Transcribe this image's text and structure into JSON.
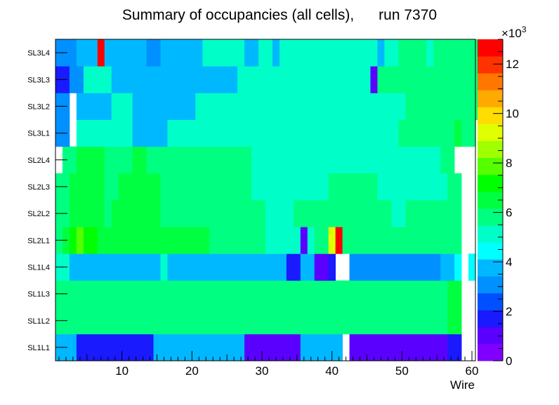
{
  "chart_data": {
    "type": "heatmap",
    "title": "Summary of occupancies (all cells),      run 7370",
    "xlabel": "Wire",
    "ylabel": "",
    "xlim": [
      0.5,
      60.5
    ],
    "x_ticks": [
      10,
      20,
      30,
      40,
      50,
      60
    ],
    "layers": [
      "SL1L1",
      "SL1L2",
      "SL1L3",
      "SL1L4",
      "SL2L1",
      "SL2L2",
      "SL2L3",
      "SL2L4",
      "SL3L1",
      "SL3L2",
      "SL3L3",
      "SL3L4"
    ],
    "zlim": [
      0,
      13000
    ],
    "z_ticks": [
      0,
      2,
      4,
      6,
      8,
      10,
      12
    ],
    "z_multiplier": "×10",
    "z_exponent": "3",
    "z_unit_divisor": 1000,
    "palette": [
      "#8000ff",
      "#5a00ff",
      "#1a1aff",
      "#0050ff",
      "#0090ff",
      "#00b8ff",
      "#00ffff",
      "#00ffc8",
      "#00ff80",
      "#00ff40",
      "#00ff00",
      "#55ff00",
      "#a0ff00",
      "#e0ff00",
      "#ffdd00",
      "#ffaa00",
      "#ff7700",
      "#ff3300",
      "#ff0000"
    ],
    "rows": [
      [
        3600,
        3600,
        3600,
        1600,
        1600,
        1600,
        1600,
        1600,
        1600,
        1600,
        1600,
        1600,
        1600,
        1600,
        4000,
        4000,
        4000,
        4000,
        4000,
        4000,
        4000,
        4000,
        4000,
        4000,
        4000,
        4000,
        4000,
        1000,
        1000,
        1000,
        1000,
        1000,
        1000,
        1000,
        1000,
        4000,
        4000,
        4000,
        4000,
        4000,
        4000,
        null,
        1000,
        1000,
        1000,
        1000,
        1000,
        1000,
        1000,
        1000,
        1000,
        1000,
        1000,
        1000,
        1000,
        1000,
        2000,
        2000,
        null,
        null,
        null
      ],
      [
        6000,
        6000,
        6000,
        6000,
        6000,
        6000,
        6000,
        6000,
        6000,
        6000,
        6000,
        5700,
        5500,
        5500,
        5500,
        5500,
        5500,
        5500,
        6000,
        6000,
        6000,
        6000,
        6000,
        6000,
        6000,
        6000,
        6000,
        6000,
        6000,
        6000,
        6000,
        6000,
        6000,
        6000,
        6000,
        6000,
        6000,
        6000,
        6000,
        6000,
        6000,
        6000,
        6000,
        6000,
        6000,
        6000,
        6000,
        6000,
        6000,
        6000,
        6000,
        6000,
        6000,
        6000,
        6000,
        6000,
        6500,
        6500,
        null,
        null,
        null
      ],
      [
        6000,
        6000,
        6000,
        6000,
        6000,
        6000,
        6000,
        6000,
        6000,
        6000,
        6000,
        5700,
        5700,
        5500,
        5500,
        5500,
        5500,
        5500,
        6000,
        6000,
        6000,
        6000,
        6000,
        6000,
        6000,
        6000,
        6000,
        6000,
        6000,
        6000,
        6000,
        6000,
        6000,
        6000,
        6000,
        6000,
        6000,
        6000,
        6000,
        6000,
        6000,
        6000,
        6000,
        6000,
        6000,
        6000,
        6000,
        6000,
        6000,
        6000,
        6000,
        6000,
        6000,
        6000,
        6000,
        6000,
        6500,
        6500,
        null,
        null,
        null
      ],
      [
        5000,
        5000,
        4000,
        4000,
        4000,
        4000,
        4000,
        4000,
        4000,
        4000,
        4000,
        4000,
        4000,
        4000,
        4000,
        5000,
        4000,
        4000,
        4000,
        4000,
        4000,
        4000,
        4000,
        4000,
        3500,
        3500,
        3500,
        3500,
        3500,
        3500,
        3500,
        3500,
        3500,
        2000,
        2000,
        3500,
        3500,
        1000,
        1000,
        2000,
        null,
        null,
        3000,
        3000,
        3000,
        3000,
        3000,
        3000,
        3000,
        3000,
        3000,
        3000,
        3000,
        3000,
        3000,
        3500,
        3500,
        4500,
        null,
        4500,
        null
      ],
      [
        6000,
        6500,
        7000,
        8000,
        7000,
        7000,
        6500,
        6500,
        6500,
        6500,
        6500,
        6500,
        6500,
        6500,
        6500,
        6500,
        6500,
        6500,
        6500,
        6500,
        6500,
        6500,
        6000,
        6000,
        6000,
        6000,
        6000,
        6000,
        6000,
        6000,
        5000,
        5000,
        5000,
        5000,
        5000,
        1000,
        5000,
        6000,
        6000,
        9000,
        13000,
        6000,
        6000,
        6000,
        5500,
        5500,
        5500,
        5500,
        5500,
        5500,
        5500,
        5500,
        5500,
        5500,
        5500,
        5500,
        5500,
        5500,
        null,
        null,
        null
      ],
      [
        6000,
        6000,
        6500,
        6500,
        6500,
        6500,
        6500,
        6000,
        6500,
        6500,
        6500,
        6500,
        6500,
        6500,
        6500,
        6000,
        6000,
        6000,
        6000,
        6000,
        5500,
        5500,
        5500,
        5500,
        5500,
        5500,
        5500,
        5500,
        5500,
        5500,
        5000,
        5000,
        5000,
        5000,
        5500,
        5500,
        5500,
        5500,
        5500,
        5500,
        5500,
        5500,
        5500,
        5500,
        5500,
        5500,
        5500,
        5500,
        5000,
        5000,
        5500,
        5500,
        5500,
        5500,
        5500,
        5500,
        5500,
        5500,
        null,
        null,
        null
      ],
      [
        6000,
        6000,
        6500,
        6500,
        6500,
        6500,
        6500,
        6000,
        6000,
        6500,
        6500,
        6500,
        6500,
        6500,
        6500,
        6000,
        6000,
        6000,
        6000,
        6000,
        5500,
        5500,
        5500,
        5500,
        5500,
        5500,
        5500,
        5500,
        5000,
        5000,
        5000,
        5000,
        5000,
        5000,
        5000,
        5000,
        5000,
        5000,
        5000,
        5500,
        5500,
        5500,
        5500,
        5500,
        5500,
        5500,
        5000,
        5000,
        5000,
        5000,
        5000,
        5000,
        5000,
        5000,
        5000,
        5000,
        5500,
        5500,
        null,
        null,
        null
      ],
      [
        null,
        6000,
        6000,
        6500,
        6500,
        6500,
        6500,
        6000,
        6000,
        6000,
        6000,
        6500,
        6500,
        6000,
        6000,
        6000,
        6000,
        6000,
        6000,
        6000,
        6000,
        5500,
        5500,
        5500,
        5500,
        5500,
        5500,
        5500,
        5000,
        5000,
        5000,
        5000,
        5000,
        5000,
        5000,
        5000,
        5000,
        5000,
        5000,
        5000,
        5000,
        5000,
        5000,
        5000,
        5000,
        5000,
        5000,
        5000,
        5000,
        5000,
        5000,
        5000,
        5000,
        5000,
        5000,
        5500,
        5500,
        null,
        null,
        null,
        null
      ],
      [
        3000,
        3000,
        null,
        4800,
        4800,
        4800,
        4800,
        4800,
        4800,
        4800,
        4800,
        3500,
        3500,
        3500,
        3500,
        3500,
        4800,
        4800,
        4800,
        4800,
        4800,
        4800,
        4800,
        4800,
        4800,
        4800,
        4800,
        5000,
        5000,
        4800,
        4800,
        4800,
        4800,
        5000,
        5000,
        4800,
        4800,
        4800,
        4800,
        4800,
        4800,
        4800,
        4800,
        4800,
        4800,
        4800,
        4800,
        4800,
        4800,
        5500,
        5500,
        5500,
        5500,
        5500,
        5500,
        5500,
        6000,
        6500,
        6000,
        6000,
        null
      ],
      [
        3000,
        3000,
        null,
        4000,
        3500,
        3500,
        3500,
        3500,
        4800,
        4800,
        4800,
        4000,
        4000,
        4000,
        4000,
        4000,
        4000,
        4000,
        4000,
        4000,
        4800,
        4800,
        4800,
        4800,
        4800,
        4800,
        4800,
        4800,
        4800,
        4800,
        4800,
        4800,
        4800,
        4800,
        4800,
        4800,
        4800,
        5000,
        5000,
        5000,
        5000,
        4800,
        4800,
        4800,
        4800,
        5000,
        5000,
        5000,
        5000,
        5000,
        5500,
        5500,
        5500,
        5500,
        5500,
        5500,
        6000,
        6000,
        5500,
        6000,
        6000
      ],
      [
        2000,
        2000,
        3000,
        3000,
        4800,
        4800,
        4800,
        4800,
        3500,
        3500,
        3500,
        3500,
        3500,
        3500,
        3500,
        3500,
        3500,
        3500,
        4000,
        4000,
        4000,
        4000,
        4000,
        4000,
        4000,
        4000,
        4800,
        4800,
        4800,
        4800,
        4800,
        4800,
        4800,
        4800,
        4800,
        4800,
        4800,
        4800,
        4800,
        4800,
        4800,
        5000,
        5000,
        5000,
        4800,
        1000,
        5500,
        5500,
        5500,
        5500,
        5500,
        5500,
        5500,
        5500,
        5500,
        5500,
        6000,
        6000,
        6000,
        6000,
        6000
      ],
      [
        3000,
        3000,
        3000,
        3500,
        3500,
        3500,
        13000,
        4000,
        3500,
        3500,
        3500,
        3500,
        3500,
        3000,
        3000,
        3500,
        3500,
        3500,
        3500,
        3500,
        3500,
        4800,
        4800,
        4800,
        4800,
        4800,
        4800,
        3500,
        3500,
        4800,
        4800,
        3500,
        4800,
        4800,
        4800,
        4800,
        4800,
        4800,
        4800,
        4800,
        4800,
        4800,
        4800,
        5000,
        4800,
        5000,
        4000,
        5000,
        5000,
        5500,
        5500,
        5500,
        5500,
        5000,
        5500,
        5500,
        5500,
        5500,
        6000,
        6000,
        6000
      ]
    ]
  }
}
